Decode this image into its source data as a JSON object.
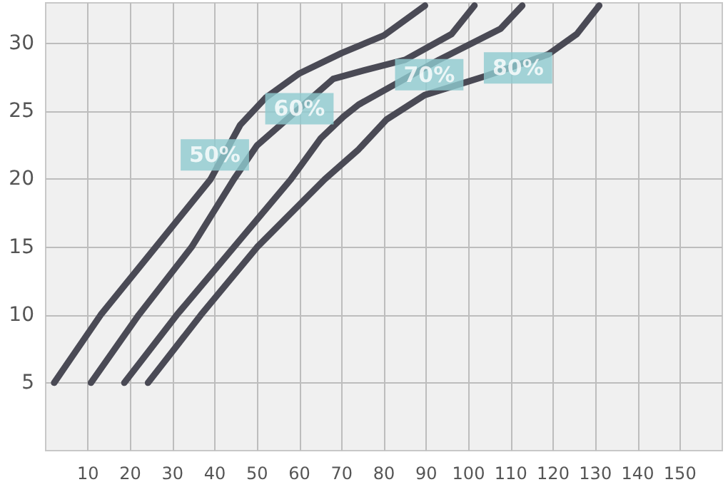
{
  "chart_data": {
    "type": "line",
    "series": [
      {
        "color": "#4a4a55",
        "x": [
          2,
          13,
          26,
          39,
          46,
          52,
          60,
          70,
          80,
          89.7
        ],
        "values": [
          5,
          10,
          15,
          20,
          24,
          26,
          27.8,
          29.3,
          30.6,
          32.8
        ]
      },
      {
        "color": "#4a4a55",
        "x": [
          10.7,
          22,
          34.5,
          44.5,
          50,
          68,
          75,
          85,
          96,
          101.4
        ],
        "values": [
          5,
          10,
          15,
          20,
          22.5,
          27.4,
          28,
          28.8,
          30.7,
          32.8
        ]
      },
      {
        "color": "#4a4a55",
        "x": [
          18.6,
          31,
          44.5,
          58,
          65,
          70.4,
          74,
          93,
          107.6,
          112.7
        ],
        "values": [
          5,
          10,
          15,
          20,
          23,
          24.6,
          25.5,
          28.8,
          31.1,
          32.8
        ]
      },
      {
        "color": "#4a4a55",
        "x": [
          24.2,
          36.7,
          50,
          66,
          74,
          80.6,
          89.6,
          104,
          118.8,
          125.6,
          130.9
        ],
        "values": [
          5,
          10,
          15,
          20,
          22.2,
          24.4,
          26.2,
          27.6,
          29.2,
          30.7,
          32.8
        ]
      }
    ],
    "annotations": [
      {
        "text": "50%",
        "x": 40,
        "y": 21.8
      },
      {
        "text": "60%",
        "x": 60,
        "y": 25.2
      },
      {
        "text": "70%",
        "x": 90.7,
        "y": 27.7
      },
      {
        "text": "80%",
        "x": 111.7,
        "y": 28.2
      }
    ],
    "xlim": [
      0,
      160
    ],
    "xticks": [
      10,
      20,
      30,
      40,
      50,
      60,
      70,
      80,
      90,
      100,
      110,
      120,
      130,
      140,
      150
    ],
    "ylim": [
      0,
      33
    ],
    "yticks": [
      5,
      10,
      15,
      20,
      25,
      30
    ],
    "grid": true,
    "marker": "none",
    "line_style": "solid"
  }
}
